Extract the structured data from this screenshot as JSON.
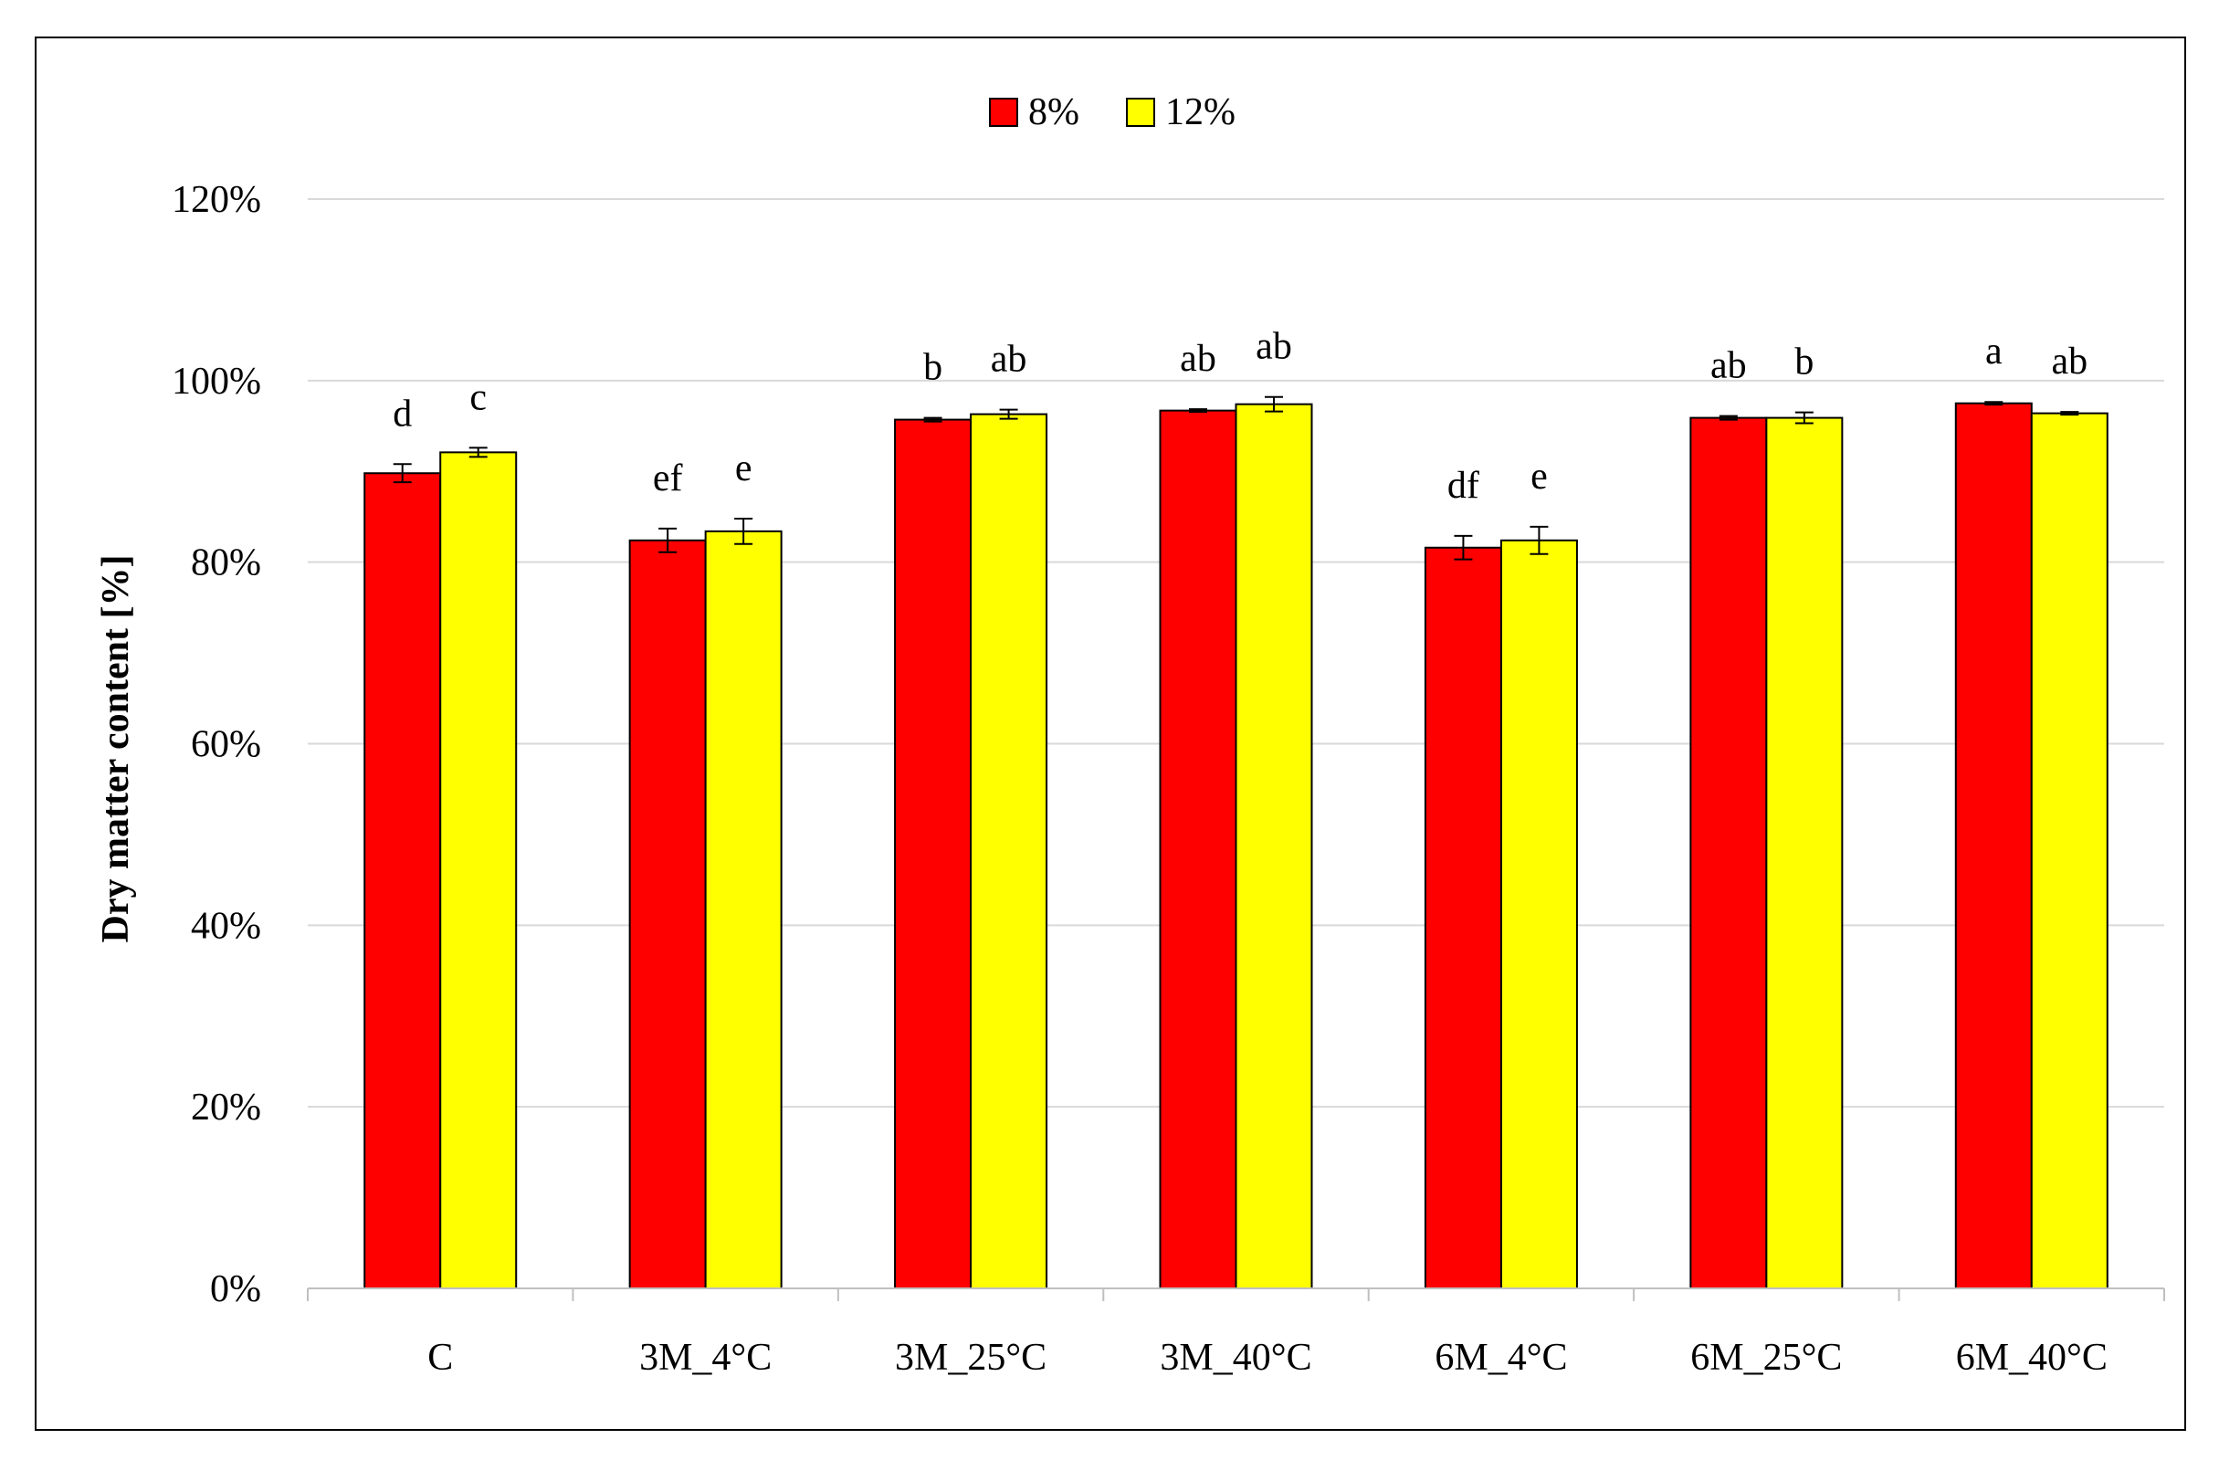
{
  "chart_data": {
    "type": "bar",
    "title": "",
    "xlabel": "",
    "ylabel": "Dry matter content [%]",
    "ylim": [
      0,
      120
    ],
    "yticks": [
      "0%",
      "20%",
      "40%",
      "60%",
      "80%",
      "100%",
      "120%"
    ],
    "ytick_values": [
      0,
      20,
      40,
      60,
      80,
      100,
      120
    ],
    "grid": true,
    "legend_position": "top-center",
    "categories": [
      "C",
      "3M_4°C",
      "3M_25°C",
      "3M_40°C",
      "6M_4°C",
      "6M_25°C",
      "6M_40°C"
    ],
    "series": [
      {
        "name": "8%",
        "color": "#ff0000",
        "values": [
          89.8,
          82.4,
          95.7,
          96.7,
          81.6,
          95.9,
          97.5
        ],
        "errors": [
          1.0,
          1.3,
          0.2,
          0.15,
          1.3,
          0.2,
          0.15
        ],
        "labels": [
          "d",
          "ef",
          "b",
          "ab",
          "df",
          "ab",
          "a"
        ]
      },
      {
        "name": "12%",
        "color": "#ffff00",
        "values": [
          92.1,
          83.4,
          96.3,
          97.4,
          82.4,
          95.9,
          96.4
        ],
        "errors": [
          0.5,
          1.4,
          0.5,
          0.8,
          1.5,
          0.6,
          0.15
        ],
        "labels": [
          "c",
          "e",
          "ab",
          "ab",
          "e",
          "b",
          "ab"
        ]
      }
    ]
  }
}
